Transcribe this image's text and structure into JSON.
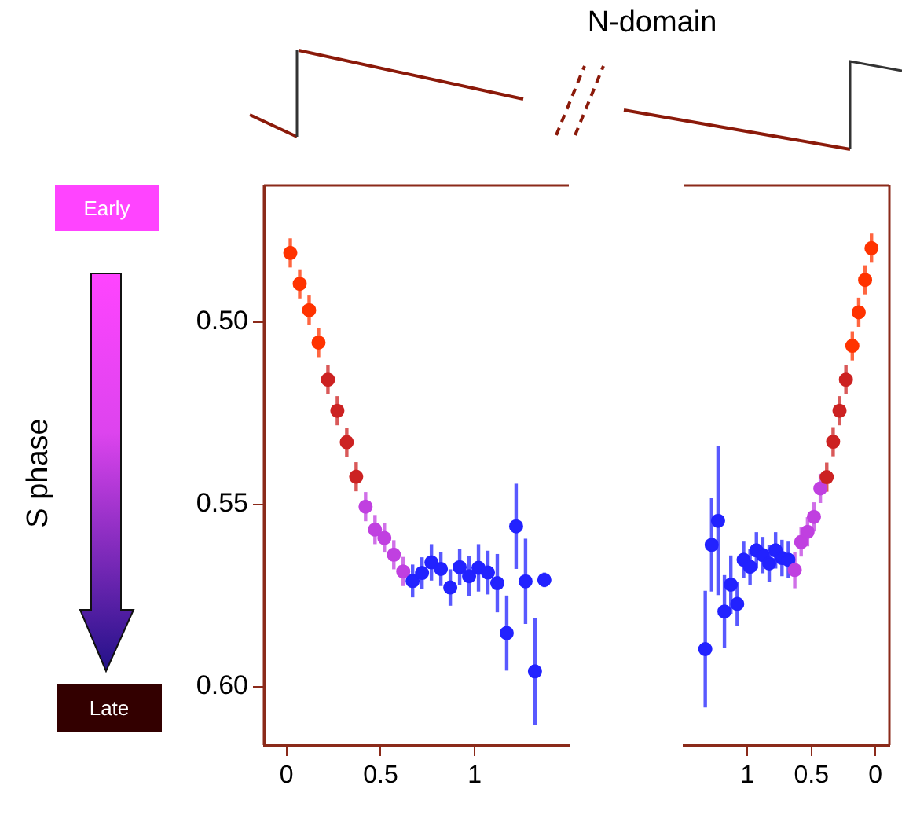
{
  "chart_data": [
    {
      "type": "scatter",
      "ylabel": "S phase",
      "annotations": [
        "N-domain",
        "Early",
        "Late"
      ],
      "xlim": [
        -0.12,
        1.5
      ],
      "xticks": [
        0,
        0.5,
        1
      ],
      "ylim": [
        0.616,
        0.4625
      ],
      "yticks": [
        {
          "value": 0.5,
          "label": "0.50"
        },
        0.55,
        {
          "value": 0.6,
          "label": "0.60"
        }
      ],
      "grid": false,
      "legend": false,
      "marker": "circle",
      "series": [
        {
          "x": [
            0.02,
            0.07,
            0.12,
            0.17,
            0.22,
            0.27,
            0.32,
            0.37,
            0.42,
            0.47,
            0.52,
            0.57,
            0.62,
            0.67,
            0.72,
            0.77,
            0.82,
            0.87,
            0.92,
            0.97,
            1.02,
            1.07,
            1.12,
            1.17,
            1.22,
            1.27,
            1.32,
            1.37
          ],
          "values": [
            0.481,
            0.4895,
            0.4967,
            0.5056,
            0.5158,
            0.5243,
            0.5329,
            0.5424,
            0.5506,
            0.5569,
            0.5592,
            0.5638,
            0.5684,
            0.571,
            0.5688,
            0.5659,
            0.5677,
            0.5728,
            0.5672,
            0.5697,
            0.5674,
            0.5687,
            0.5716,
            0.5853,
            0.556,
            0.5711,
            0.5958,
            0.5707
          ],
          "errors": [
            0.004,
            0.004,
            0.004,
            0.004,
            0.004,
            0.004,
            0.004,
            0.004,
            0.004,
            0.004,
            0.004,
            0.004,
            0.004,
            0.0045,
            0.0043,
            0.005,
            0.0047,
            0.005,
            0.005,
            0.0055,
            0.0065,
            0.006,
            0.008,
            0.0103,
            0.0117,
            0.0117,
            0.0147,
            0.002
          ],
          "colors": [
            "#ff3300",
            "#ff3300",
            "#ff3300",
            "#ff3300",
            "#cc2222",
            "#cc2222",
            "#cc2222",
            "#cc2222",
            "#c040e0",
            "#c040e0",
            "#c040e0",
            "#c040e0",
            "#c040e0",
            "#2222ff",
            "#2222ff",
            "#2222ff",
            "#2222ff",
            "#2222ff",
            "#2222ff",
            "#2222ff",
            "#2222ff",
            "#2222ff",
            "#2222ff",
            "#2222ff",
            "#2222ff",
            "#2222ff",
            "#2222ff",
            "#2222ff"
          ]
        }
      ]
    },
    {
      "type": "scatter",
      "xlim": [
        1.5,
        -0.11
      ],
      "xticks": [
        1,
        0.5,
        0
      ],
      "ylim": [
        0.616,
        0.4625
      ],
      "tick_labels": "x",
      "grid": false,
      "legend": false,
      "marker": "circle",
      "series": [
        {
          "x": [
            1.33,
            1.28,
            1.23,
            1.18,
            1.13,
            1.08,
            1.03,
            0.98,
            0.93,
            0.88,
            0.83,
            0.78,
            0.73,
            0.68,
            0.63,
            0.58,
            0.53,
            0.48,
            0.43,
            0.38,
            0.33,
            0.28,
            0.23,
            0.18,
            0.13,
            0.08,
            0.03
          ],
          "values": [
            0.5897,
            0.5611,
            0.5545,
            0.5794,
            0.572,
            0.5773,
            0.5652,
            0.5671,
            0.5626,
            0.5639,
            0.5662,
            0.5626,
            0.5647,
            0.5652,
            0.568,
            0.5603,
            0.5575,
            0.5534,
            0.5456,
            0.5425,
            0.5328,
            0.5243,
            0.5158,
            0.5065,
            0.4973,
            0.4884,
            0.4797
          ],
          "errors": [
            0.016,
            0.0128,
            0.0204,
            0.01,
            0.008,
            0.006,
            0.005,
            0.005,
            0.005,
            0.005,
            0.005,
            0.005,
            0.005,
            0.005,
            0.005,
            0.004,
            0.004,
            0.004,
            0.004,
            0.004,
            0.004,
            0.004,
            0.004,
            0.004,
            0.004,
            0.004,
            0.004
          ],
          "colors": [
            "#2222ff",
            "#2222ff",
            "#2222ff",
            "#2222ff",
            "#2222ff",
            "#2222ff",
            "#2222ff",
            "#2222ff",
            "#2222ff",
            "#2222ff",
            "#2222ff",
            "#2222ff",
            "#2222ff",
            "#2222ff",
            "#c040e0",
            "#c040e0",
            "#c040e0",
            "#c040e0",
            "#c040e0",
            "#cc2222",
            "#cc2222",
            "#cc2222",
            "#cc2222",
            "#ff3300",
            "#ff3300",
            "#ff3300",
            "#ff3300"
          ]
        }
      ]
    }
  ]
}
